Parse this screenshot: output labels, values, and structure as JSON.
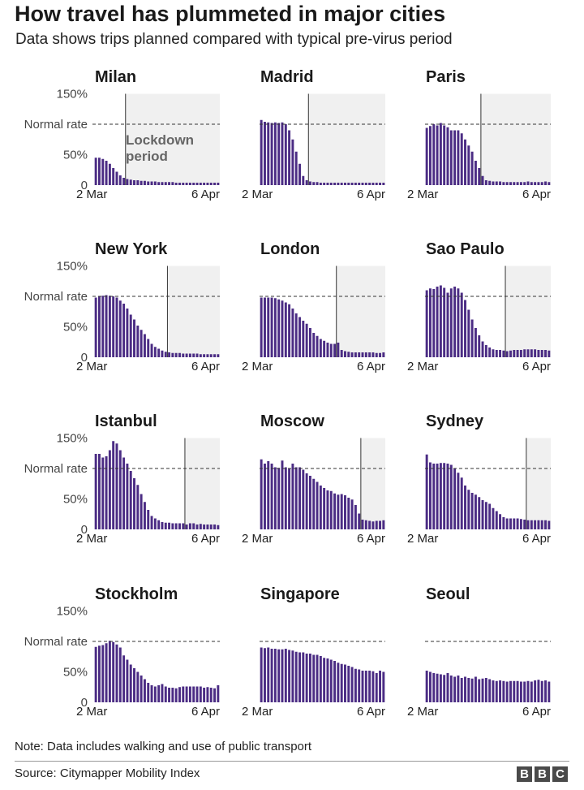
{
  "title": "How travel has plummeted in major cities",
  "subtitle": "Data shows trips planned compared with typical pre-virus period",
  "note": "Note: Data includes walking and use of public transport",
  "source": "Source: Citymapper Mobility Index",
  "logo": {
    "letters": [
      "B",
      "B",
      "C"
    ]
  },
  "colors": {
    "bar": "#4b2c84",
    "lockdown_shade": "#f0f0f0",
    "normal_line": "#333333",
    "text": "#222222"
  },
  "chart_data": {
    "type": "bar",
    "x_start_label": "2 Mar",
    "x_end_label": "6 Apr",
    "ylim": [
      0,
      150
    ],
    "y_ticks": [
      {
        "value": 0,
        "label": "0"
      },
      {
        "value": 50,
        "label": "50%"
      },
      {
        "value": 100,
        "label": "Normal rate"
      },
      {
        "value": 150,
        "label": "150%"
      }
    ],
    "normal_rate": 100,
    "annotation": "Lockdown period",
    "cities": [
      {
        "name": "Milan",
        "lockdown_day": 9,
        "values": [
          45,
          45,
          43,
          40,
          35,
          28,
          22,
          16,
          12,
          10,
          9,
          8,
          8,
          7,
          7,
          6,
          6,
          6,
          5,
          5,
          5,
          5,
          5,
          4,
          4,
          4,
          4,
          4,
          4,
          4,
          4,
          4,
          4,
          4,
          4,
          4
        ]
      },
      {
        "name": "Madrid",
        "lockdown_day": 14,
        "values": [
          107,
          104,
          103,
          102,
          103,
          102,
          103,
          100,
          90,
          75,
          55,
          35,
          15,
          8,
          6,
          5,
          5,
          4,
          4,
          4,
          4,
          4,
          4,
          4,
          4,
          4,
          4,
          4,
          4,
          4,
          4,
          4,
          4,
          4,
          4,
          4
        ]
      },
      {
        "name": "Paris",
        "lockdown_day": 16,
        "values": [
          94,
          97,
          100,
          98,
          102,
          98,
          95,
          90,
          90,
          90,
          85,
          75,
          65,
          55,
          40,
          28,
          15,
          8,
          7,
          6,
          6,
          6,
          5,
          5,
          5,
          5,
          5,
          5,
          5,
          6,
          5,
          5,
          5,
          5,
          6,
          5
        ]
      },
      {
        "name": "New York",
        "lockdown_day": 21,
        "values": [
          98,
          100,
          101,
          102,
          101,
          100,
          98,
          93,
          88,
          80,
          70,
          62,
          52,
          45,
          38,
          30,
          22,
          17,
          14,
          11,
          9,
          8,
          7,
          7,
          7,
          6,
          6,
          6,
          6,
          6,
          5,
          5,
          5,
          5,
          5,
          5
        ]
      },
      {
        "name": "London",
        "lockdown_day": 22,
        "values": [
          98,
          98,
          98,
          98,
          97,
          95,
          93,
          90,
          87,
          80,
          72,
          66,
          60,
          55,
          48,
          40,
          35,
          30,
          27,
          24,
          22,
          22,
          24,
          12,
          10,
          9,
          8,
          8,
          8,
          8,
          8,
          8,
          8,
          7,
          7,
          8
        ]
      },
      {
        "name": "Sao Paulo",
        "lockdown_day": 23,
        "values": [
          110,
          113,
          112,
          116,
          118,
          114,
          106,
          113,
          116,
          113,
          106,
          94,
          78,
          62,
          48,
          36,
          26,
          20,
          16,
          13,
          12,
          12,
          11,
          10,
          11,
          12,
          12,
          12,
          13,
          13,
          13,
          13,
          12,
          12,
          12,
          11
        ]
      },
      {
        "name": "Istanbul",
        "lockdown_day": 26,
        "values": [
          124,
          124,
          118,
          120,
          130,
          145,
          141,
          130,
          118,
          108,
          96,
          84,
          73,
          58,
          45,
          32,
          22,
          18,
          15,
          12,
          11,
          11,
          10,
          10,
          10,
          10,
          8,
          10,
          10,
          8,
          9,
          8,
          8,
          8,
          8,
          7
        ]
      },
      {
        "name": "Moscow",
        "lockdown_day": 29,
        "values": [
          115,
          108,
          112,
          108,
          102,
          101,
          113,
          102,
          100,
          108,
          102,
          102,
          98,
          92,
          88,
          83,
          78,
          72,
          68,
          64,
          63,
          59,
          57,
          58,
          56,
          52,
          49,
          40,
          26,
          16,
          15,
          14,
          13,
          14,
          14,
          15
        ]
      },
      {
        "name": "Sydney",
        "lockdown_day": 29,
        "values": [
          123,
          110,
          108,
          108,
          109,
          109,
          108,
          106,
          100,
          93,
          85,
          72,
          65,
          60,
          57,
          53,
          48,
          45,
          42,
          35,
          30,
          25,
          20,
          18,
          18,
          18,
          18,
          17,
          16,
          15,
          15,
          15,
          15,
          15,
          15,
          14
        ]
      },
      {
        "name": "Stockholm",
        "lockdown_day": null,
        "values": [
          91,
          93,
          94,
          97,
          101,
          99,
          95,
          90,
          77,
          70,
          62,
          56,
          50,
          44,
          38,
          32,
          28,
          26,
          28,
          30,
          26,
          24,
          24,
          23,
          25,
          26,
          26,
          26,
          26,
          26,
          26,
          24,
          25,
          24,
          23,
          28
        ]
      },
      {
        "name": "Singapore",
        "lockdown_day": null,
        "values": [
          90,
          89,
          90,
          88,
          88,
          87,
          87,
          88,
          86,
          85,
          83,
          82,
          82,
          80,
          80,
          78,
          78,
          76,
          73,
          72,
          70,
          68,
          65,
          63,
          62,
          60,
          58,
          55,
          54,
          52,
          52,
          52,
          51,
          48,
          52,
          50
        ]
      },
      {
        "name": "Seoul",
        "lockdown_day": null,
        "values": [
          52,
          50,
          48,
          47,
          46,
          45,
          48,
          44,
          42,
          44,
          40,
          42,
          40,
          39,
          42,
          38,
          39,
          40,
          38,
          36,
          35,
          36,
          35,
          34,
          35,
          35,
          35,
          34,
          34,
          35,
          34,
          36,
          37,
          35,
          36,
          34
        ]
      }
    ]
  }
}
